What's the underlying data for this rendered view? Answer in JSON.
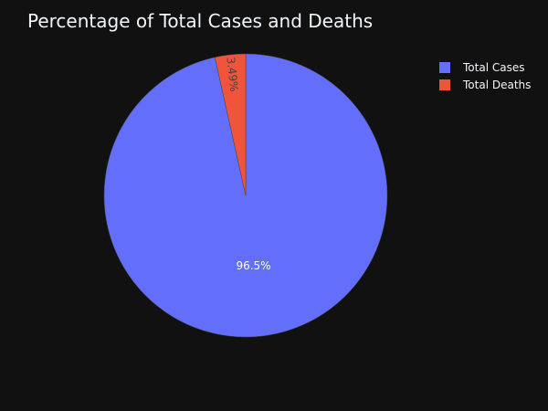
{
  "chart_data": {
    "type": "pie",
    "title": "Percentage of Total Cases and Deaths",
    "categories": [
      "Total Cases",
      "Total Deaths"
    ],
    "values": [
      96.5,
      3.49
    ],
    "labels": [
      "96.5%",
      "3.49%"
    ],
    "colors": [
      "#636efa",
      "#ef553b"
    ],
    "legend_position": "top-right",
    "direction": "clockwise",
    "start_angle": "12 o'clock"
  },
  "theme": {
    "background": "#111111",
    "text_color": "#f2f5fa",
    "slice_border": "#444444"
  }
}
